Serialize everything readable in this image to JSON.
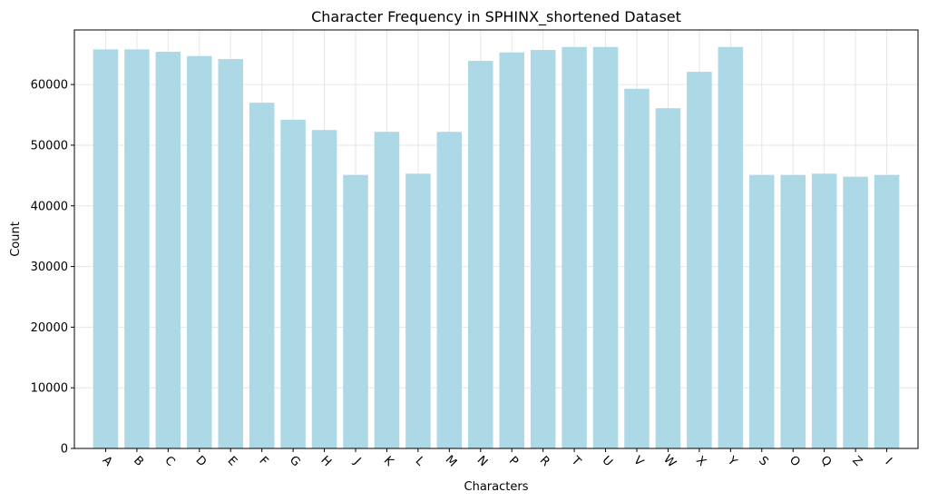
{
  "chart_data": {
    "type": "bar",
    "title": "Character Frequency in SPHINX_shortened Dataset",
    "xlabel": "Characters",
    "ylabel": "Count",
    "categories": [
      "A",
      "B",
      "C",
      "D",
      "E",
      "F",
      "G",
      "H",
      "J",
      "K",
      "L",
      "M",
      "N",
      "P",
      "R",
      "T",
      "U",
      "V",
      "W",
      "X",
      "Y",
      "S",
      "O",
      "Q",
      "Z",
      "I"
    ],
    "values": [
      65800,
      65800,
      65400,
      64700,
      64200,
      57000,
      54200,
      52500,
      45100,
      52200,
      45300,
      52200,
      63900,
      65300,
      65700,
      66200,
      66200,
      59300,
      56100,
      62100,
      66200,
      45100,
      45100,
      45300,
      44800,
      45100
    ],
    "ylim": [
      0,
      69000
    ],
    "yticks": [
      0,
      10000,
      20000,
      30000,
      40000,
      50000,
      60000
    ],
    "grid": true,
    "bar_color": "#add8e6",
    "xtick_rotation": 45
  }
}
